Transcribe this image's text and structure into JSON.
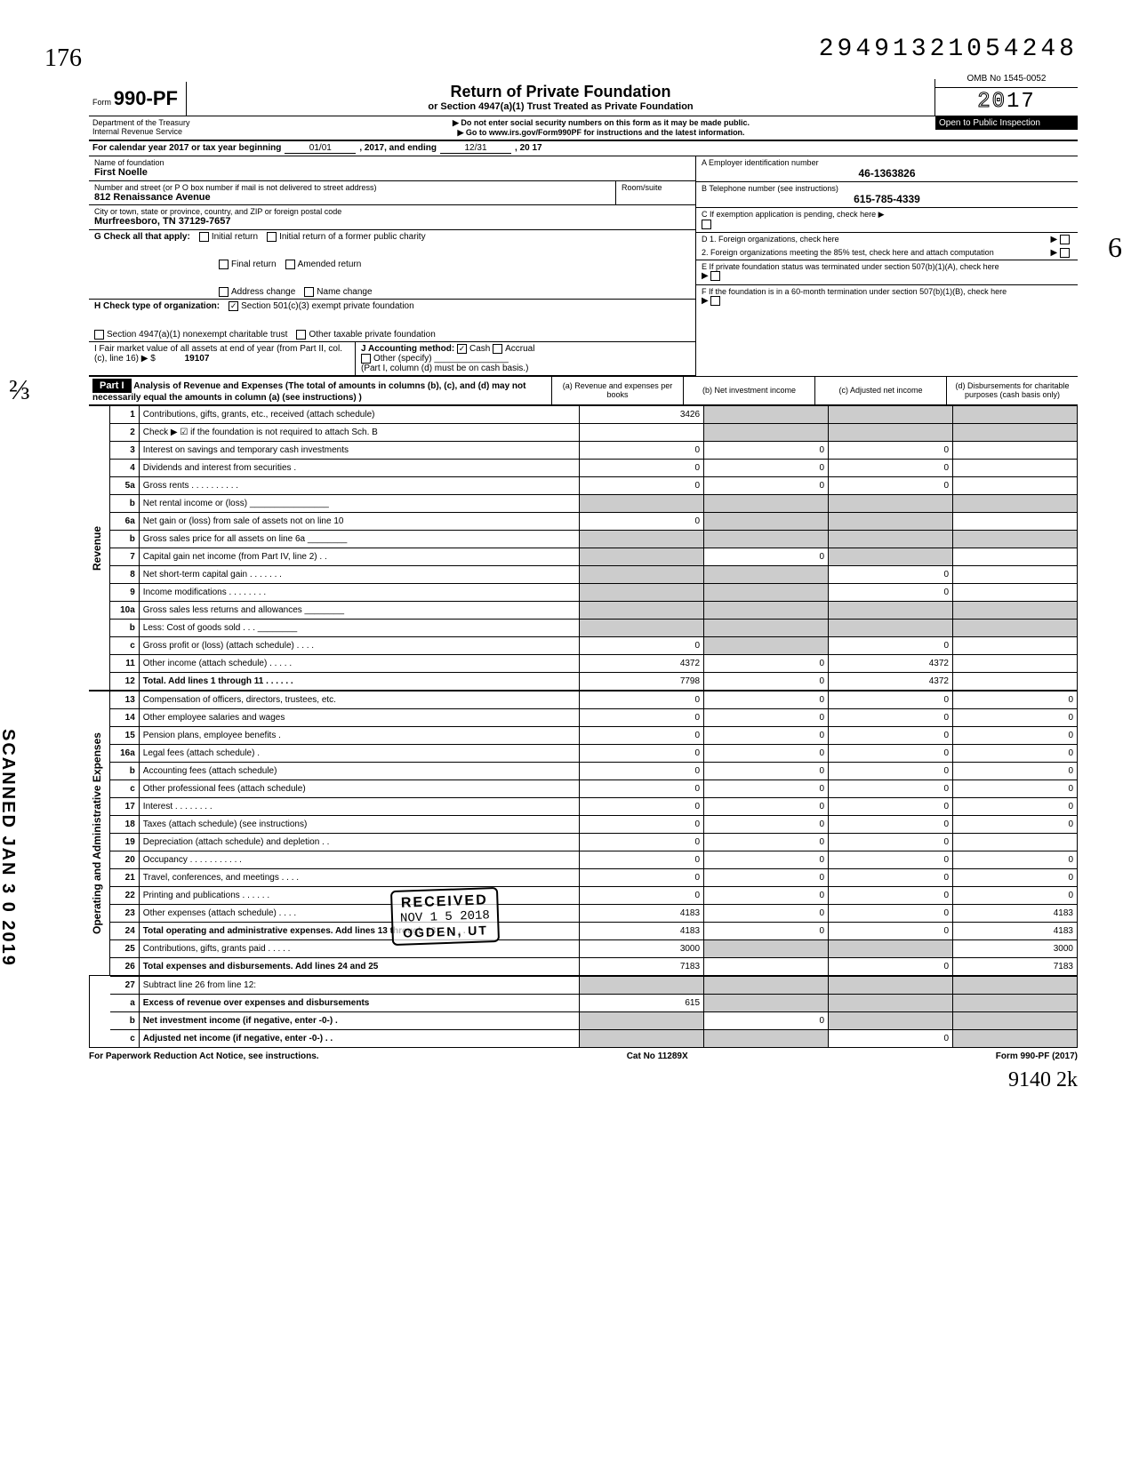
{
  "top_number": "29491321054248",
  "scanned_stamp": "SCANNED JAN 3 0 2019",
  "form": {
    "label_small": "Form",
    "number": "990-PF",
    "title": "Return of Private Foundation",
    "subtitle": "or Section 4947(a)(1) Trust Treated as Private Foundation",
    "note1": "▶ Do not enter social security numbers on this form as it may be made public.",
    "note2": "▶ Go to www.irs.gov/Form990PF for instructions and the latest information.",
    "dept": "Department of the Treasury",
    "irs": "Internal Revenue Service",
    "omb": "OMB No 1545-0052",
    "year_prefix": "20",
    "year_suffix": "17",
    "open": "Open to Public Inspection"
  },
  "calendar": {
    "label": "For calendar year 2017 or tax year beginning",
    "begin": "01/01",
    "mid": ", 2017, and ending",
    "end": "12/31",
    "end_year": ", 20   17"
  },
  "entity": {
    "name_label": "Name of foundation",
    "name": "First Noelle",
    "addr_label": "Number and street (or P O  box number if mail is not delivered to street address)",
    "addr": "812 Renaissance Avenue",
    "room_label": "Room/suite",
    "city_label": "City or town, state or province, country, and ZIP or foreign postal code",
    "city": "Murfreesboro, TN  37129-7657",
    "a_label": "A  Employer identification number",
    "a_val": "46-1363826",
    "b_label": "B  Telephone number (see instructions)",
    "b_val": "615-785-4339",
    "c_label": "C  If exemption application is pending, check here ▶",
    "d1_label": "D  1. Foreign organizations, check here",
    "d2_label": "2. Foreign organizations meeting the 85% test, check here and attach computation",
    "e_label": "E  If private foundation status was terminated under section 507(b)(1)(A), check here",
    "f_label": "F  If the foundation is in a 60-month termination under section 507(b)(1)(B), check here"
  },
  "g": {
    "label": "G   Check all that apply:",
    "opts": [
      "Initial return",
      "Initial return of a former public charity",
      "Final return",
      "Amended return",
      "Address change",
      "Name change"
    ]
  },
  "h": {
    "label": "H   Check type of organization:",
    "opt1": "Section 501(c)(3) exempt private foundation",
    "opt2": "Section 4947(a)(1) nonexempt charitable trust",
    "opt3": "Other taxable private foundation"
  },
  "i": {
    "label": "I    Fair market value of all assets at end of year  (from Part II, col. (c), line 16) ▶ $",
    "val": "19107"
  },
  "j": {
    "label": "J   Accounting method:",
    "cash": "Cash",
    "accrual": "Accrual",
    "other": "Other (specify)",
    "note": "(Part I, column (d) must be on cash basis.)"
  },
  "part1": {
    "header": "Part I",
    "title": "Analysis of Revenue and Expenses (The total of amounts in columns (b), (c), and (d) may not necessarily equal the amounts in column (a) (see instructions) )",
    "col_a": "(a) Revenue and expenses per books",
    "col_b": "(b) Net investment income",
    "col_c": "(c) Adjusted net income",
    "col_d": "(d) Disbursements for charitable purposes (cash basis only)"
  },
  "revenue_label": "Revenue",
  "expenses_label": "Operating and Administrative Expenses",
  "lines": {
    "1": {
      "n": "1",
      "d": "",
      "a": "3426",
      "b": "",
      "c": "",
      "bd_shade": true,
      "cd_shade": true,
      "dd_shade": true
    },
    "2": {
      "n": "2",
      "d": "",
      "a": "",
      "b": "",
      "c": "",
      "bd_shade": true,
      "cd_shade": true,
      "dd_shade": true
    },
    "3": {
      "n": "3",
      "d": "",
      "a": "0",
      "b": "0",
      "c": "0"
    },
    "4": {
      "n": "4",
      "d": "",
      "a": "0",
      "b": "0",
      "c": "0"
    },
    "5a": {
      "n": "5a",
      "d": "",
      "a": "0",
      "b": "0",
      "c": "0"
    },
    "5b": {
      "n": "b",
      "d": "",
      "a": "",
      "b": "",
      "c": "",
      "all_shade": true
    },
    "6a": {
      "n": "6a",
      "d": "",
      "a": "0",
      "b": "",
      "c": "",
      "bd_shade": true,
      "cd_shade": true
    },
    "6b": {
      "n": "b",
      "d": "",
      "a": "",
      "b": "",
      "c": "",
      "all_shade": true
    },
    "7": {
      "n": "7",
      "d": "",
      "a": "",
      "b": "0",
      "c": "",
      "ad_shade": true,
      "cd_shade": true
    },
    "8": {
      "n": "8",
      "d": "",
      "a": "",
      "b": "",
      "c": "0",
      "ad_shade": true,
      "bd_shade": true
    },
    "9": {
      "n": "9",
      "d": "",
      "a": "",
      "b": "",
      "c": "0",
      "ad_shade": true,
      "bd_shade": true
    },
    "10a": {
      "n": "10a",
      "d": "",
      "a": "",
      "b": "",
      "c": "",
      "all_shade": true
    },
    "10b": {
      "n": "b",
      "d": "",
      "a": "",
      "b": "",
      "c": "",
      "all_shade": true
    },
    "10c": {
      "n": "c",
      "d": "",
      "a": "0",
      "b": "",
      "c": "0",
      "bd_shade": true
    },
    "11": {
      "n": "11",
      "d": "",
      "a": "4372",
      "b": "0",
      "c": "4372"
    },
    "12": {
      "n": "12",
      "d": "",
      "a": "7798",
      "b": "0",
      "c": "4372",
      "bold": true
    },
    "13": {
      "n": "13",
      "d": "0",
      "a": "0",
      "b": "0",
      "c": "0"
    },
    "14": {
      "n": "14",
      "d": "0",
      "a": "0",
      "b": "0",
      "c": "0"
    },
    "15": {
      "n": "15",
      "d": "0",
      "a": "0",
      "b": "0",
      "c": "0"
    },
    "16a": {
      "n": "16a",
      "d": "0",
      "a": "0",
      "b": "0",
      "c": "0"
    },
    "16b": {
      "n": "b",
      "d": "0",
      "a": "0",
      "b": "0",
      "c": "0"
    },
    "16c": {
      "n": "c",
      "d": "0",
      "a": "0",
      "b": "0",
      "c": "0"
    },
    "17": {
      "n": "17",
      "d": "0",
      "a": "0",
      "b": "0",
      "c": "0"
    },
    "18": {
      "n": "18",
      "d": "0",
      "a": "0",
      "b": "0",
      "c": "0"
    },
    "19": {
      "n": "19",
      "d": "",
      "a": "0",
      "b": "0",
      "c": "0"
    },
    "20": {
      "n": "20",
      "d": "0",
      "a": "0",
      "b": "0",
      "c": "0"
    },
    "21": {
      "n": "21",
      "d": "0",
      "a": "0",
      "b": "0",
      "c": "0"
    },
    "22": {
      "n": "22",
      "d": "0",
      "a": "0",
      "b": "0",
      "c": "0"
    },
    "23": {
      "n": "23",
      "d": "4183",
      "a": "4183",
      "b": "0",
      "c": "0"
    },
    "24": {
      "n": "24",
      "d": "4183",
      "a": "4183",
      "b": "0",
      "c": "0",
      "bold": true
    },
    "25": {
      "n": "25",
      "d": "3000",
      "a": "3000",
      "b": "",
      "c": "",
      "bd_shade": true,
      "cd_shade": true
    },
    "26": {
      "n": "26",
      "d": "7183",
      "a": "7183",
      "b": "",
      "c": "0",
      "bold": true
    },
    "27": {
      "n": "27",
      "d": "",
      "a": "",
      "b": "",
      "c": "",
      "all_shade": true
    },
    "27a": {
      "n": "a",
      "d": "",
      "a": "615",
      "b": "",
      "c": "",
      "bd_shade": true,
      "cd_shade": true,
      "dd_shade": true,
      "bold": true
    },
    "27b": {
      "n": "b",
      "d": "",
      "a": "",
      "b": "0",
      "c": "",
      "ad_shade": true,
      "cd_shade": true,
      "dd_shade": true,
      "bold": true
    },
    "27c": {
      "n": "c",
      "d": "",
      "a": "",
      "b": "",
      "c": "0",
      "ad_shade": true,
      "bd_shade": true,
      "dd_shade": true,
      "bold": true
    }
  },
  "line_order_rev": [
    "1",
    "2",
    "3",
    "4",
    "5a",
    "5b",
    "6a",
    "6b",
    "7",
    "8",
    "9",
    "10a",
    "10b",
    "10c",
    "11",
    "12"
  ],
  "line_order_exp": [
    "13",
    "14",
    "15",
    "16a",
    "16b",
    "16c",
    "17",
    "18",
    "19",
    "20",
    "21",
    "22",
    "23",
    "24",
    "25",
    "26"
  ],
  "line_order_bot": [
    "27",
    "27a",
    "27b",
    "27c"
  ],
  "received": {
    "r1": "RECEIVED",
    "r2": "NOV 1 5 2018",
    "r3": "OGDEN, UT"
  },
  "footer": {
    "left": "For Paperwork Reduction Act Notice, see instructions.",
    "mid": "Cat No  11289X",
    "right": "Form 990-PF (2017)"
  },
  "hw_bottom": "9140   2k",
  "hw_init": "176",
  "hw_side": "⅔",
  "hw_right": "6"
}
